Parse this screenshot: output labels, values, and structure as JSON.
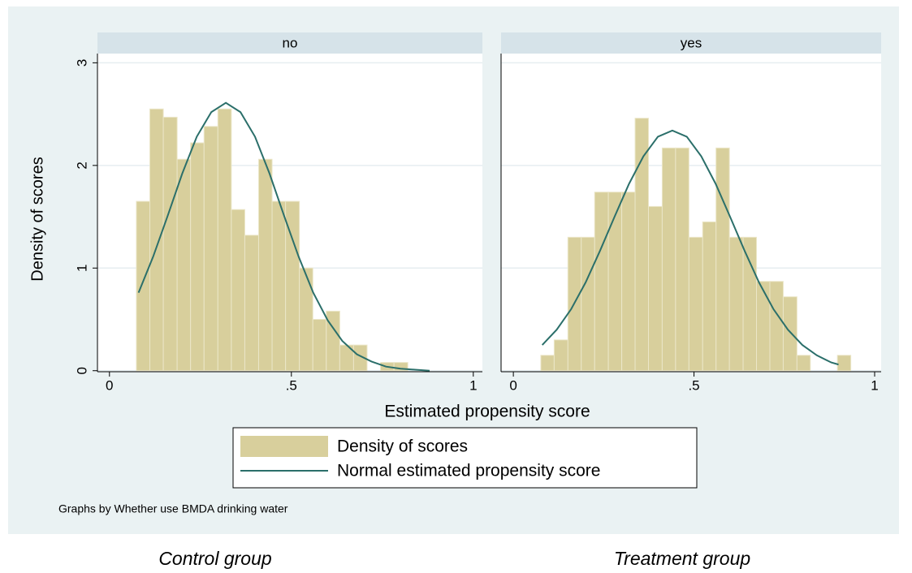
{
  "chart_data": [
    {
      "type": "histogram",
      "title": "no",
      "color": "#d8cf9c",
      "bins": [
        0.074,
        0.111,
        0.148,
        0.186,
        0.223,
        0.26,
        0.298,
        0.335,
        0.372,
        0.41,
        0.447,
        0.484,
        0.522,
        0.559,
        0.596,
        0.633,
        0.671,
        0.708,
        0.745,
        0.782,
        0.82
      ],
      "values": [
        1.65,
        2.55,
        2.47,
        2.06,
        2.22,
        2.38,
        2.55,
        1.57,
        1.32,
        2.06,
        1.65,
        1.65,
        1.0,
        0.5,
        0.58,
        0.25,
        0.25,
        0,
        0.08,
        0.08
      ],
      "curve": {
        "color": "#2b6f6a",
        "x": [
          0.08,
          0.12,
          0.16,
          0.2,
          0.24,
          0.28,
          0.32,
          0.36,
          0.4,
          0.44,
          0.48,
          0.52,
          0.56,
          0.6,
          0.64,
          0.68,
          0.72,
          0.76,
          0.8,
          0.84,
          0.88
        ],
        "values": [
          0.76,
          1.11,
          1.51,
          1.92,
          2.28,
          2.52,
          2.61,
          2.52,
          2.28,
          1.92,
          1.51,
          1.11,
          0.76,
          0.49,
          0.29,
          0.16,
          0.09,
          0.04,
          0.02,
          0.01,
          0.0
        ]
      },
      "xlim": [
        -0.033,
        1.025
      ],
      "xticks": [
        0,
        {
          "value": 0.5,
          "label": ".5"
        },
        1
      ],
      "ylim": [
        -0.01,
        3.09
      ],
      "yticks": [
        0,
        1,
        2,
        3
      ],
      "grid": true
    },
    {
      "type": "histogram",
      "title": "yes",
      "color": "#d8cf9c",
      "bins": [
        0.076,
        0.113,
        0.151,
        0.188,
        0.225,
        0.263,
        0.3,
        0.337,
        0.374,
        0.412,
        0.449,
        0.486,
        0.524,
        0.561,
        0.598,
        0.636,
        0.673,
        0.71,
        0.747,
        0.785,
        0.822,
        0.859,
        0.897,
        0.934
      ],
      "values": [
        0.15,
        0.3,
        1.3,
        1.3,
        1.74,
        1.74,
        1.74,
        2.46,
        1.6,
        2.17,
        2.17,
        1.3,
        1.45,
        2.17,
        1.3,
        1.3,
        0.87,
        0.87,
        0.72,
        0.15,
        0,
        0,
        0.15
      ],
      "curve": {
        "color": "#2b6f6a",
        "x": [
          0.08,
          0.12,
          0.16,
          0.2,
          0.24,
          0.28,
          0.32,
          0.36,
          0.4,
          0.44,
          0.48,
          0.52,
          0.56,
          0.6,
          0.64,
          0.68,
          0.72,
          0.76,
          0.8,
          0.84,
          0.88,
          0.9
        ],
        "values": [
          0.25,
          0.4,
          0.6,
          0.86,
          1.17,
          1.5,
          1.82,
          2.09,
          2.28,
          2.34,
          2.28,
          2.09,
          1.82,
          1.5,
          1.17,
          0.86,
          0.6,
          0.4,
          0.25,
          0.15,
          0.08,
          0.06
        ]
      },
      "xlim": [
        -0.034,
        1.018
      ],
      "xticks": [
        0,
        {
          "value": 0.5,
          "label": ".5"
        },
        1
      ],
      "ylim": [
        -0.01,
        3.09
      ],
      "yticks": [
        0,
        1,
        2,
        3
      ],
      "grid": true
    }
  ],
  "x_label": "Estimated propensity score",
  "y_label": "Density of scores",
  "legend": [
    "Density of scores",
    "Normal estimated propensity score"
  ],
  "note": "Graphs by Whether use BMDA drinking water",
  "captions": [
    "Control group",
    "Treatment group"
  ]
}
